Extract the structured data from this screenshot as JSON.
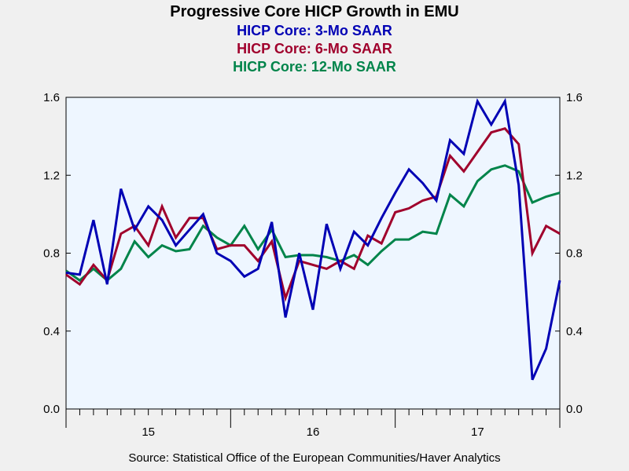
{
  "chart_data": {
    "type": "line",
    "title": "Progressive Core HICP Growth in EMU",
    "source": "Source:  Statistical Office of the European Communities/Haver Analytics",
    "y_ticks": [
      "0.0",
      "0.4",
      "0.8",
      "1.2",
      "1.6"
    ],
    "ylim": [
      0,
      1.6
    ],
    "x_ticks": [
      "15",
      "16",
      "17"
    ],
    "x_tick_months": [
      6,
      18,
      30
    ],
    "x_range_months": [
      0,
      36
    ],
    "grid": false,
    "series": [
      {
        "name": "HICP Core: 3-Mo SAAR",
        "color": "#0000b4",
        "values": [
          0.7,
          0.69,
          0.97,
          0.64,
          1.13,
          0.92,
          1.04,
          0.97,
          0.84,
          0.92,
          1.0,
          0.8,
          0.76,
          0.68,
          0.72,
          0.96,
          0.47,
          0.8,
          0.51,
          0.95,
          0.72,
          0.91,
          0.84,
          0.98,
          1.11,
          1.23,
          1.16,
          1.07,
          1.38,
          1.31,
          1.58,
          1.46,
          1.58,
          1.15,
          0.15,
          0.31,
          0.66
        ]
      },
      {
        "name": "HICP Core: 6-Mo SAAR",
        "color": "#a0002c",
        "values": [
          0.69,
          0.64,
          0.74,
          0.66,
          0.9,
          0.94,
          0.84,
          1.04,
          0.88,
          0.98,
          0.98,
          0.82,
          0.84,
          0.84,
          0.76,
          0.86,
          0.57,
          0.76,
          0.74,
          0.72,
          0.76,
          0.72,
          0.89,
          0.85,
          1.01,
          1.03,
          1.07,
          1.09,
          1.3,
          1.22,
          1.32,
          1.42,
          1.44,
          1.36,
          0.8,
          0.94,
          0.9
        ]
      },
      {
        "name": "HICP Core: 12-Mo SAAR",
        "color": "#00844a",
        "values": [
          0.71,
          0.66,
          0.72,
          0.66,
          0.72,
          0.86,
          0.78,
          0.84,
          0.81,
          0.82,
          0.94,
          0.88,
          0.84,
          0.94,
          0.82,
          0.92,
          0.78,
          0.79,
          0.79,
          0.78,
          0.76,
          0.79,
          0.74,
          0.81,
          0.87,
          0.87,
          0.91,
          0.9,
          1.1,
          1.04,
          1.17,
          1.23,
          1.25,
          1.22,
          1.06,
          1.09,
          1.11
        ]
      }
    ]
  }
}
